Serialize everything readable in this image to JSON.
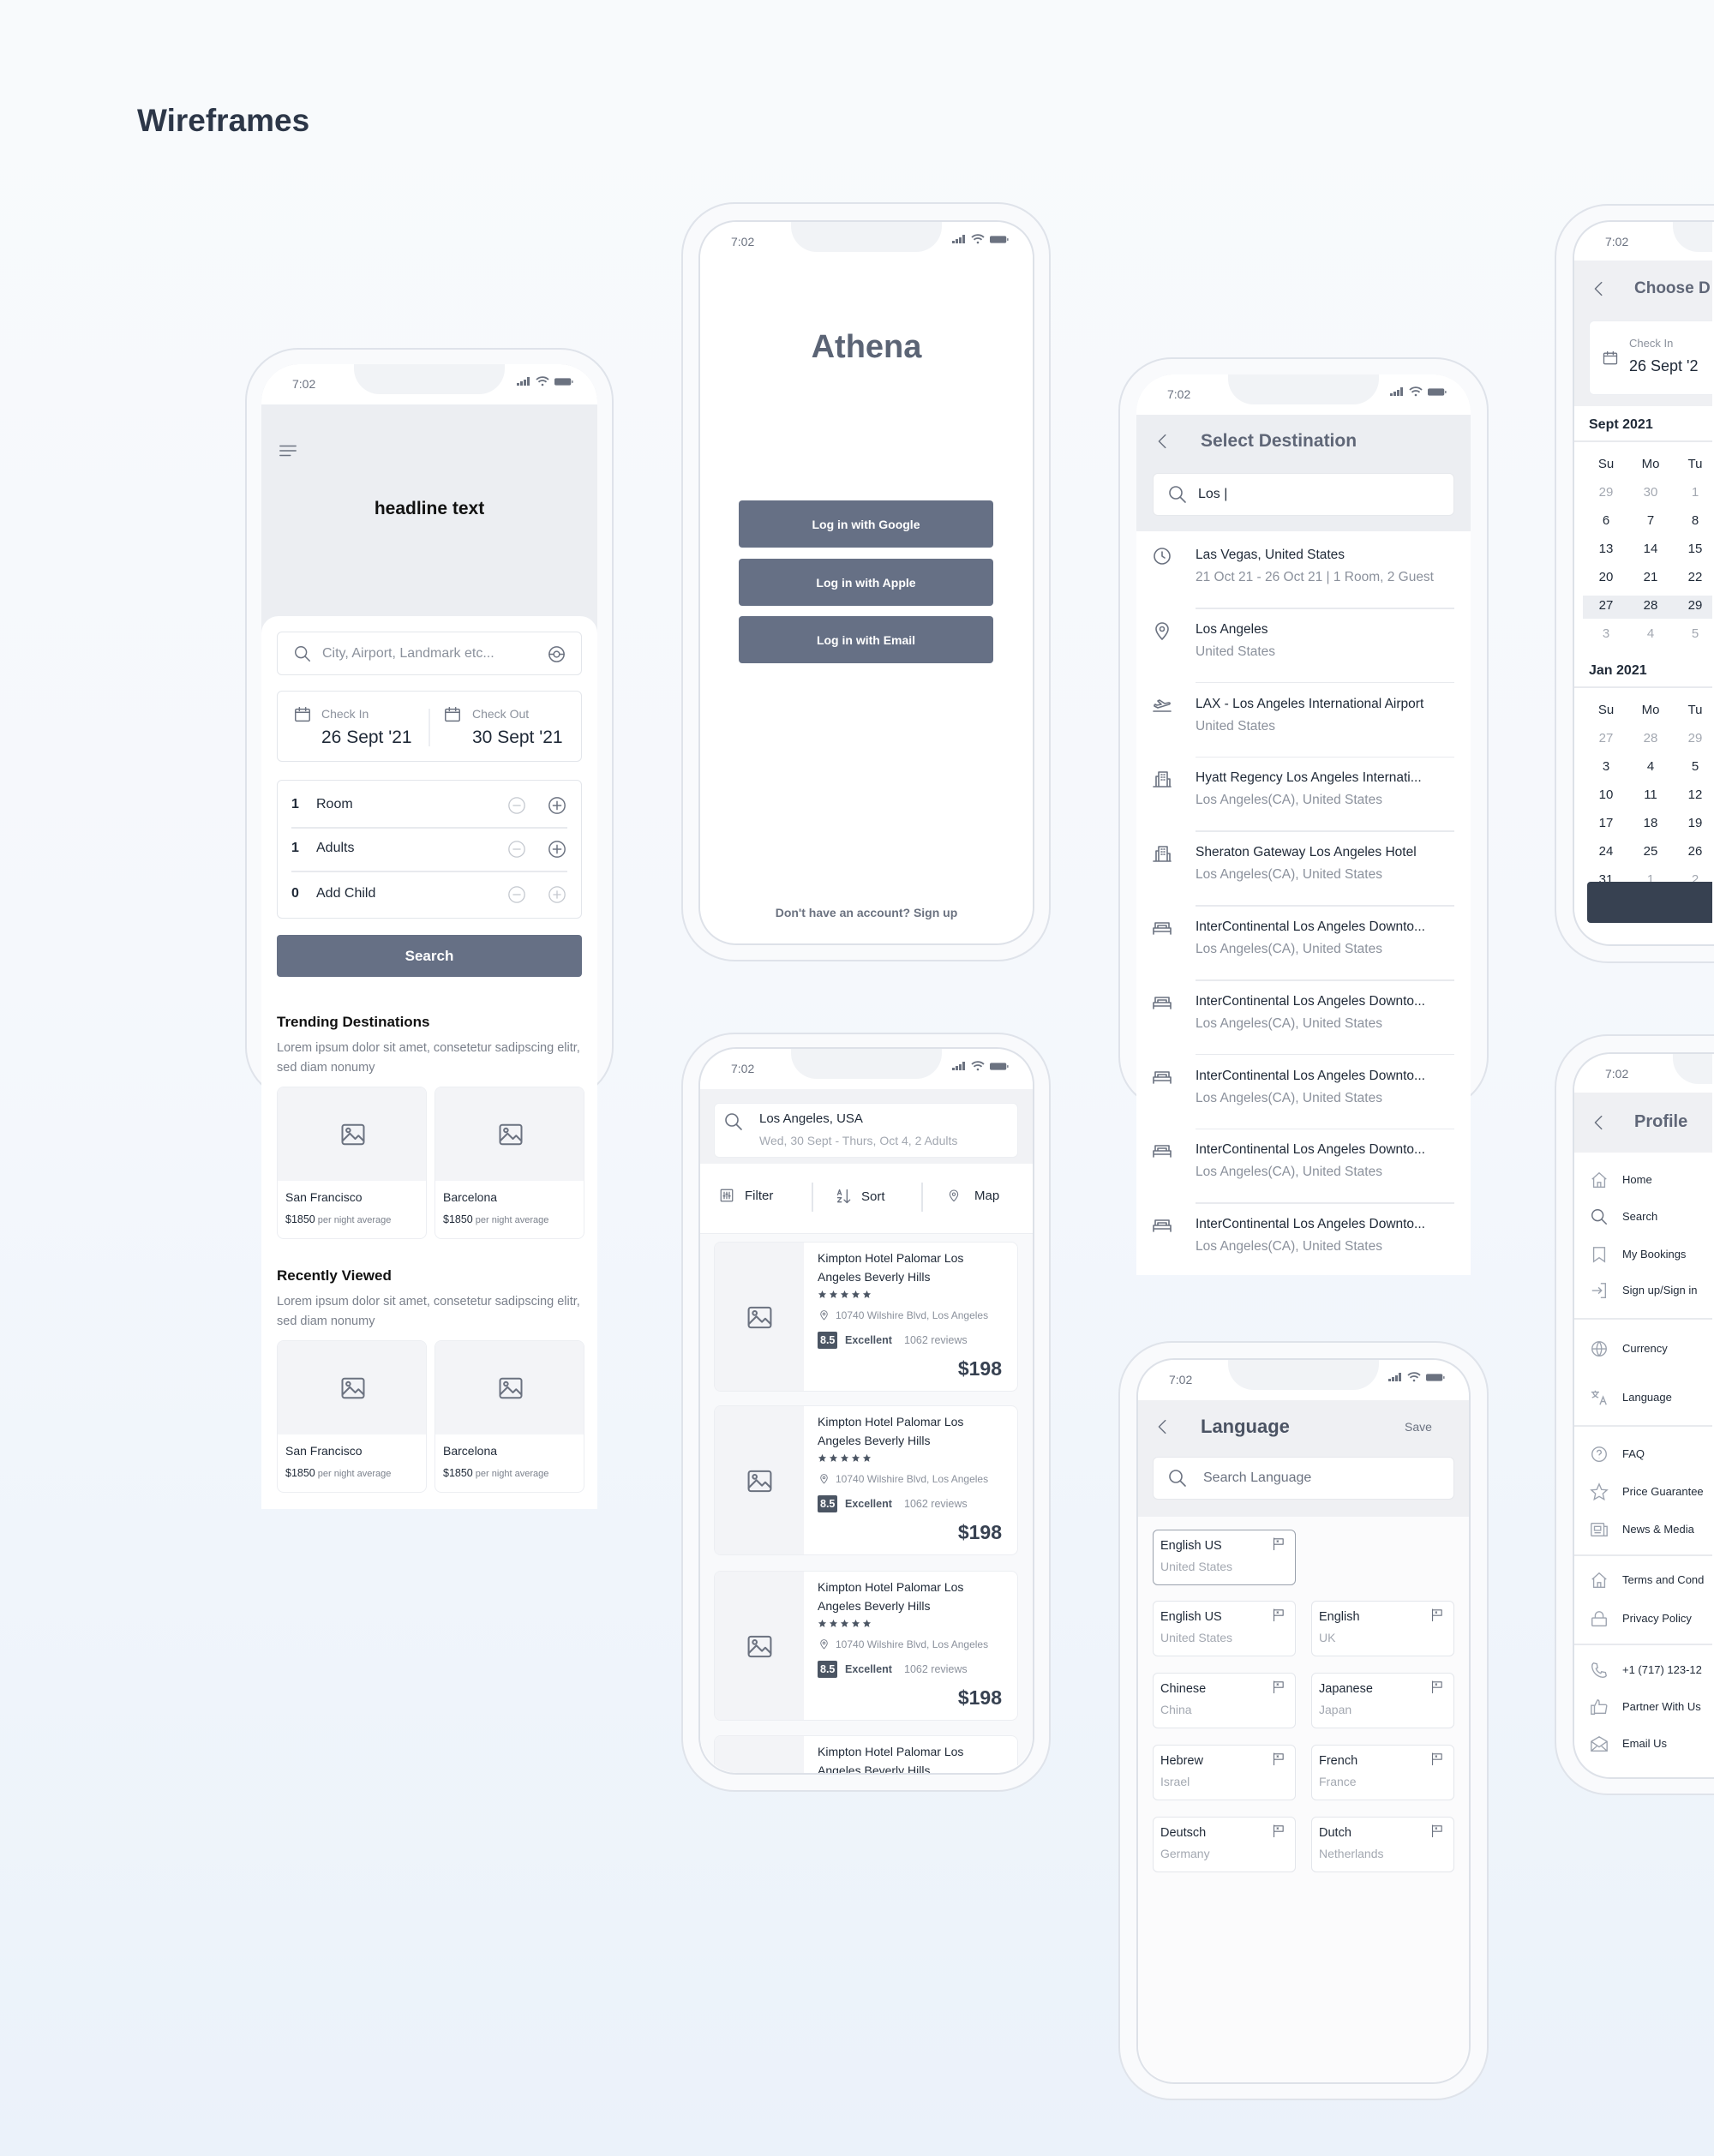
{
  "page_title": "Wireframes",
  "status": {
    "time": "7:02"
  },
  "colors": {
    "button": "#667085",
    "header_bg": "#eceef2",
    "dark_button": "#374151",
    "text": "#1f2937",
    "muted": "#9ca3af"
  },
  "home": {
    "headline": "headline text",
    "search_placeholder": "City, Airport, Landmark etc...",
    "check_in_label": "Check In",
    "check_in_value": "26 Sept '21",
    "check_out_label": "Check Out",
    "check_out_value": "30 Sept '21",
    "counters": [
      {
        "count": "1",
        "label": "Room",
        "plus_enabled": true
      },
      {
        "count": "1",
        "label": "Adults",
        "plus_enabled": true
      },
      {
        "count": "0",
        "label": "Add Child",
        "plus_enabled": false
      }
    ],
    "search_button": "Search",
    "sections": [
      {
        "title": "Trending Destinations",
        "desc": "Lorem ipsum dolor sit amet, consetetur sadipscing elitr, sed diam nonumy",
        "cards": [
          {
            "name": "San Francisco",
            "price": "$1850",
            "unit": "per night average"
          },
          {
            "name": "Barcelona",
            "price": "$1850",
            "unit": "per night average"
          }
        ]
      },
      {
        "title": "Recently Viewed",
        "desc": "Lorem ipsum dolor sit amet, consetetur sadipscing elitr, sed diam nonumy",
        "cards": [
          {
            "name": "San Francisco",
            "price": "$1850",
            "unit": "per night average"
          },
          {
            "name": "Barcelona",
            "price": "$1850",
            "unit": "per night average"
          }
        ]
      }
    ]
  },
  "login": {
    "app_name": "Athena",
    "buttons": [
      "Log in with Google",
      "Log in with Apple",
      "Log in with Email"
    ],
    "signup": "Don't have an account? Sign up"
  },
  "results": {
    "location": "Los Angeles, USA",
    "dates": "Wed, 30 Sept - Thurs, Oct 4, 2 Adults",
    "filter": "Filter",
    "sort": "Sort",
    "map": "Map",
    "hotels": [
      {
        "name1": "Kimpton Hotel Palomar Los",
        "name2": "Angeles Beverly Hills",
        "stars": 5,
        "address": "10740 Wilshire Blvd, Los Angeles",
        "score": "8.5",
        "rating": "Excellent",
        "reviews": "1062 reviews",
        "price": "$198"
      },
      {
        "name1": "Kimpton Hotel Palomar Los",
        "name2": "Angeles Beverly Hills",
        "stars": 5,
        "address": "10740 Wilshire Blvd, Los Angeles",
        "score": "8.5",
        "rating": "Excellent",
        "reviews": "1062 reviews",
        "price": "$198"
      },
      {
        "name1": "Kimpton Hotel Palomar Los",
        "name2": "Angeles Beverly Hills",
        "stars": 5,
        "address": "10740 Wilshire Blvd, Los Angeles",
        "score": "8.5",
        "rating": "Excellent",
        "reviews": "1062 reviews",
        "price": "$198"
      },
      {
        "name1": "Kimpton Hotel Palomar Los",
        "name2": "Angeles Beverly Hills"
      }
    ]
  },
  "destination": {
    "title": "Select Destination",
    "query": "Los |",
    "items": [
      {
        "icon": "clock",
        "title": "Las Vegas, United States",
        "sub": "21 Oct 21 - 26 Oct 21 | 1 Room, 2 Guest"
      },
      {
        "icon": "pin",
        "title": "Los Angeles",
        "sub": "United States"
      },
      {
        "icon": "plane",
        "title": "LAX - Los Angeles International Airport",
        "sub": "United States"
      },
      {
        "icon": "building",
        "title": "Hyatt Regency Los Angeles Internati...",
        "sub": "Los Angeles(CA), United States"
      },
      {
        "icon": "building",
        "title": "Sheraton Gateway Los Angeles Hotel",
        "sub": "Los Angeles(CA), United States"
      },
      {
        "icon": "bed",
        "title": "InterContinental Los Angeles Downto...",
        "sub": "Los Angeles(CA), United States"
      },
      {
        "icon": "bed",
        "title": "InterContinental Los Angeles Downto...",
        "sub": "Los Angeles(CA), United States"
      },
      {
        "icon": "bed",
        "title": "InterContinental Los Angeles Downto...",
        "sub": "Los Angeles(CA), United States"
      },
      {
        "icon": "bed",
        "title": "InterContinental Los Angeles Downto...",
        "sub": "Los Angeles(CA), United States"
      },
      {
        "icon": "bed",
        "title": "InterContinental Los Angeles Downto...",
        "sub": "Los Angeles(CA), United States"
      }
    ]
  },
  "language": {
    "title": "Language",
    "save": "Save",
    "search_placeholder": "Search Language",
    "selected": {
      "name": "English US",
      "country": "United States"
    },
    "options": [
      {
        "name": "English US",
        "country": "United States"
      },
      {
        "name": "English",
        "country": "UK"
      },
      {
        "name": "Chinese",
        "country": "China"
      },
      {
        "name": "Japanese",
        "country": "Japan"
      },
      {
        "name": "Hebrew",
        "country": "Israel"
      },
      {
        "name": "French",
        "country": "France"
      },
      {
        "name": "Deutsch",
        "country": "Germany"
      },
      {
        "name": "Dutch",
        "country": "Netherlands"
      }
    ]
  },
  "dates": {
    "title": "Choose D",
    "check_in_label": "Check In",
    "check_in_value": "26 Sept '2",
    "months": [
      {
        "name": "Sept 2021",
        "weekdays": [
          "Su",
          "Mo",
          "Tu"
        ],
        "rows": [
          [
            "29",
            "30",
            "1"
          ],
          [
            "6",
            "7",
            "8"
          ],
          [
            "13",
            "14",
            "15"
          ],
          [
            "20",
            "21",
            "22"
          ],
          [
            "27",
            "28",
            "29"
          ],
          [
            "3",
            "4",
            "5"
          ]
        ],
        "muted_rows": [
          0,
          5
        ],
        "muted_cells": [
          [
            0,
            0
          ],
          [
            0,
            1
          ]
        ],
        "selected_row": 4
      },
      {
        "name": "Jan 2021",
        "weekdays": [
          "Su",
          "Mo",
          "Tu"
        ],
        "rows": [
          [
            "27",
            "28",
            "29"
          ],
          [
            "3",
            "4",
            "5"
          ],
          [
            "10",
            "11",
            "12"
          ],
          [
            "17",
            "18",
            "19"
          ],
          [
            "24",
            "25",
            "26"
          ],
          [
            "31",
            "1",
            "2"
          ]
        ],
        "muted_cells": [
          [
            0,
            0
          ],
          [
            0,
            1
          ],
          [
            0,
            2
          ],
          [
            5,
            1
          ],
          [
            5,
            2
          ]
        ]
      }
    ]
  },
  "profile": {
    "title": "Profile",
    "groups": [
      [
        {
          "icon": "home",
          "label": "Home"
        },
        {
          "icon": "search",
          "label": "Search"
        },
        {
          "icon": "bookmark",
          "label": "My Bookings"
        },
        {
          "icon": "signin",
          "label": "Sign up/Sign in"
        }
      ],
      [
        {
          "icon": "globe",
          "label": "Currency"
        },
        {
          "icon": "translate",
          "label": "Language"
        }
      ],
      [
        {
          "icon": "question",
          "label": "FAQ"
        },
        {
          "icon": "star-outline",
          "label": "Price Guarantee"
        },
        {
          "icon": "news",
          "label": "News & Media"
        }
      ],
      [
        {
          "icon": "home",
          "label": "Terms and Cond"
        },
        {
          "icon": "lock",
          "label": "Privacy Policy"
        }
      ],
      [
        {
          "icon": "phone",
          "label": "+1 (717) 123-12"
        },
        {
          "icon": "thumbs-up",
          "label": "Partner With Us"
        },
        {
          "icon": "mail",
          "label": "Email Us"
        }
      ]
    ]
  }
}
